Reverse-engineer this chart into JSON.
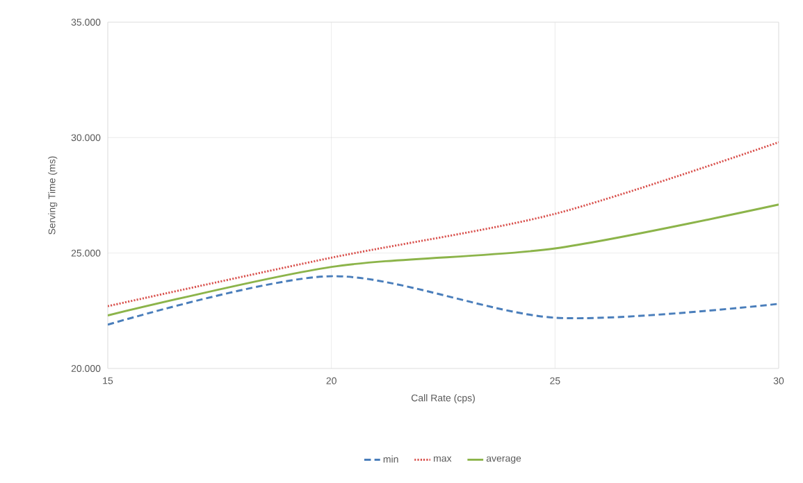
{
  "chart_data": {
    "type": "line",
    "xlabel": "Call Rate (cps)",
    "ylabel": "Serving Time (ms)",
    "x": [
      15,
      20,
      25,
      30
    ],
    "series": [
      {
        "name": "min",
        "color": "#4a7ebb",
        "line_style": "dashed",
        "values": [
          21900,
          24000,
          22200,
          22800
        ]
      },
      {
        "name": "max",
        "color": "#d9534f",
        "line_style": "dotted",
        "values": [
          22700,
          24800,
          26700,
          29800
        ]
      },
      {
        "name": "average",
        "color": "#8cb44a",
        "line_style": "solid",
        "values": [
          22300,
          24400,
          25200,
          27100
        ]
      }
    ],
    "xlim": [
      15,
      30
    ],
    "xticks": [
      15,
      20,
      25,
      30
    ],
    "ylim": [
      20000,
      35000
    ],
    "yticks": [
      {
        "value": 20000,
        "label": "20.000"
      },
      {
        "value": 25000,
        "label": "25.000"
      },
      {
        "value": 30000,
        "label": "30.000"
      },
      {
        "value": 35000,
        "label": "35.000"
      }
    ],
    "grid": true,
    "legend": "bottom",
    "marker": "none"
  }
}
